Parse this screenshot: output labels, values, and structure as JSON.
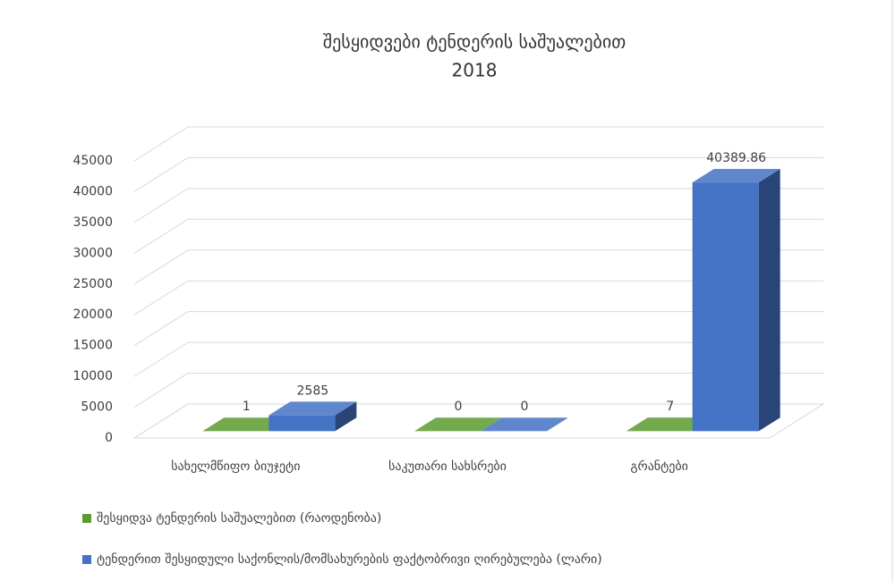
{
  "chart_data": {
    "type": "bar3d",
    "title": "შესყიდვები ტენდერის საშუალებით",
    "subtitle": "2018",
    "categories": [
      "სახელმწიფო ბიუჯეტი",
      "საკუთარი სახსრები",
      "გრანტები"
    ],
    "series": [
      {
        "name": "შესყიდვა ტენდერის საშუალებით (რაოდენობა)",
        "color": "#5b9b2f",
        "values": [
          1,
          0,
          7
        ]
      },
      {
        "name": "ტენდერით შესყიდული საქონლის/მომსახურების ფაქტობრივი ღირებულება (ლარი)",
        "color": "#4472c4",
        "values": [
          2585,
          0,
          40389.86
        ]
      }
    ],
    "ylim": [
      0,
      45000
    ],
    "yticks": [
      0,
      5000,
      10000,
      15000,
      20000,
      25000,
      30000,
      35000,
      40000,
      45000
    ],
    "grid": true,
    "legend": "bottom"
  }
}
